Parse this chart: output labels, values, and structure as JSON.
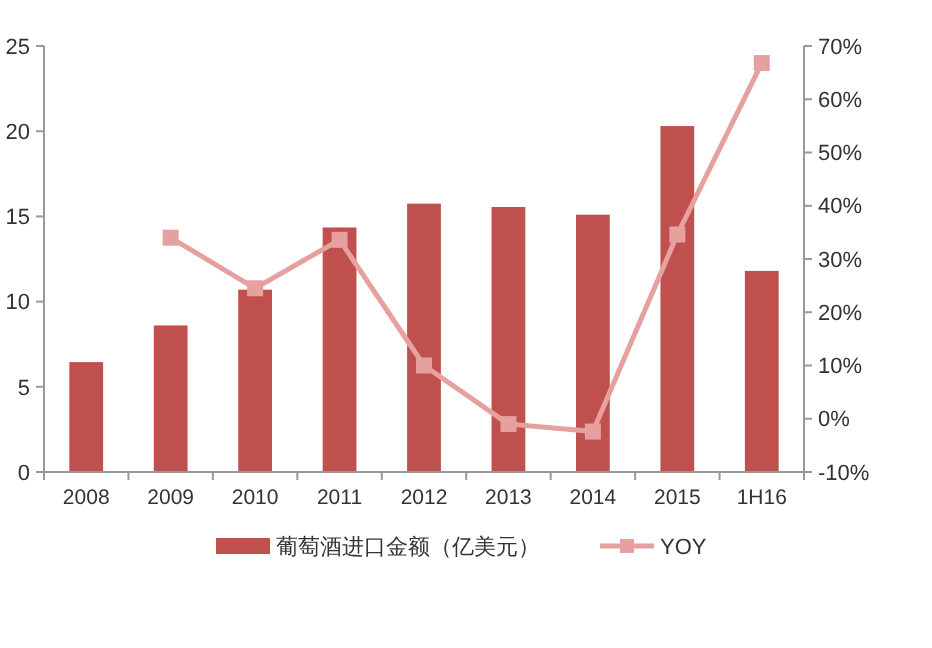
{
  "chart_data": {
    "type": "bar",
    "categories": [
      "2008",
      "2009",
      "2010",
      "2011",
      "2012",
      "2013",
      "2014",
      "2015",
      "1H16"
    ],
    "series": [
      {
        "name": "葡萄酒进口金额（亿美元）",
        "color": "#c0504d",
        "values": [
          6.45,
          8.6,
          10.7,
          14.35,
          15.75,
          15.55,
          15.1,
          20.3,
          11.8
        ]
      },
      {
        "name": "YOY",
        "type": "line",
        "axis": "y2",
        "color": "#e6a0a0",
        "marker": "square",
        "values": [
          null,
          34,
          24.5,
          33.6,
          10,
          -1,
          -2.4,
          34.6,
          66.8
        ]
      }
    ],
    "ylim": [
      0,
      25
    ],
    "yticks": [
      0,
      5,
      10,
      15,
      20,
      25
    ],
    "y2lim": [
      -10,
      70
    ],
    "y2ticks": [
      {
        "value": -10,
        "label": "-10%"
      },
      {
        "value": 0,
        "label": "0%"
      },
      {
        "value": 10,
        "label": "10%"
      },
      {
        "value": 20,
        "label": "20%"
      },
      {
        "value": 30,
        "label": "30%"
      },
      {
        "value": 40,
        "label": "40%"
      },
      {
        "value": 50,
        "label": "50%"
      },
      {
        "value": 60,
        "label": "60%"
      },
      {
        "value": 70,
        "label": "70%"
      }
    ],
    "grid": false,
    "legend": "bottom"
  }
}
